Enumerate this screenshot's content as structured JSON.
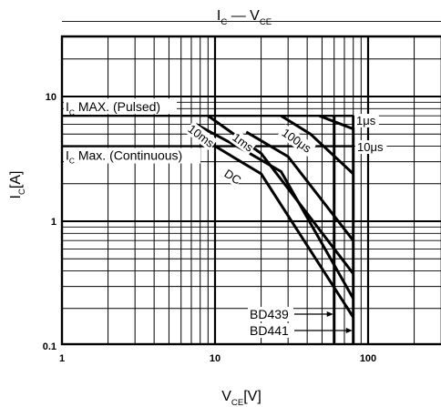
{
  "chart_data": {
    "type": "line",
    "title": {
      "main": "I",
      "main_sub": "C",
      "dash": " — ",
      "second": "V",
      "second_sub": "CE"
    },
    "xlabel": {
      "main": "V",
      "sub": "CE",
      "unit": "[V]"
    },
    "ylabel": {
      "main": "I",
      "sub": "C",
      "unit": "[A]"
    },
    "x_scale": "log",
    "y_scale": "log",
    "xlim": [
      1,
      300
    ],
    "ylim": [
      0.1,
      40
    ],
    "x_ticks": [
      {
        "value": 1,
        "label": "1"
      },
      {
        "value": 10,
        "label": "10"
      },
      {
        "value": 100,
        "label": "100"
      }
    ],
    "y_ticks": [
      {
        "value": 0.1,
        "label": "0.1"
      },
      {
        "value": 1,
        "label": "1"
      },
      {
        "value": 10,
        "label": "10"
      }
    ],
    "grid": true,
    "limits": [
      {
        "id": "ic-max-pulsed",
        "sub": "C",
        "label_pre": "I",
        "label_post": " MAX. (Pulsed)",
        "value": 7
      },
      {
        "id": "ic-max-continuous",
        "sub": "C",
        "label_pre": "I",
        "label_post": " Max. (Continuous)",
        "value": 4
      }
    ],
    "series": [
      {
        "id": "1us",
        "name": "1μs",
        "points": [
          [
            48,
            7
          ],
          [
            80,
            5.5
          ]
        ]
      },
      {
        "id": "10us",
        "name": "10μs",
        "points": [
          [
            27,
            7
          ],
          [
            42,
            5
          ],
          [
            80,
            2.4
          ]
        ]
      },
      {
        "id": "100us",
        "name": "100μs",
        "points": [
          [
            16,
            5.2
          ],
          [
            30,
            3.3
          ],
          [
            80,
            0.7
          ]
        ]
      },
      {
        "id": "1ms",
        "name": "1ms",
        "points": [
          [
            9,
            7
          ],
          [
            20,
            3.5
          ],
          [
            80,
            0.38
          ]
        ]
      },
      {
        "id": "10ms",
        "name": "10ms",
        "points": [
          [
            7.5,
            6
          ],
          [
            15,
            3.8
          ],
          [
            27,
            2.5
          ],
          [
            80,
            0.24
          ]
        ]
      },
      {
        "id": "dc",
        "name": "DC",
        "points": [
          [
            10,
            4
          ],
          [
            20,
            2.4
          ],
          [
            80,
            0.17
          ]
        ]
      }
    ],
    "voltage_limits": [
      {
        "id": "bd439",
        "name": "BD439",
        "value": 60
      },
      {
        "id": "bd441",
        "name": "BD441",
        "value": 80
      }
    ]
  }
}
